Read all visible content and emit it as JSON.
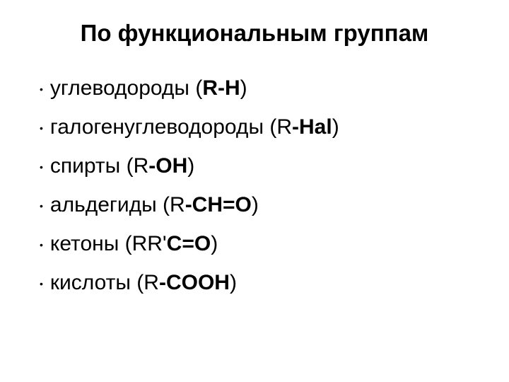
{
  "title": "По функциональным группам",
  "items": [
    {
      "name": "углеводороды",
      "paren_open": " (",
      "bold_part": "R-H",
      "after": "",
      "paren_close": ")"
    },
    {
      "name": "галогенуглеводороды",
      "paren_open": " (R",
      "bold_part": "-Hal",
      "after": "",
      "paren_close": ")"
    },
    {
      "name": "спирты",
      "paren_open": " (R",
      "bold_part": "-OH",
      "after": "",
      "paren_close": ")"
    },
    {
      "name": "альдегиды",
      "paren_open": " (R",
      "bold_part": "-CH=O",
      "after": "",
      "paren_close": ")"
    },
    {
      "name": "кетоны",
      "paren_open": " (RR'",
      "bold_part": "C=O",
      "after": "",
      "paren_close": ")"
    },
    {
      "name": "кислоты",
      "paren_open": " (R",
      "bold_part": "-COOH",
      "after": "",
      "paren_close": ")"
    }
  ],
  "colors": {
    "background": "#ffffff",
    "text": "#000000"
  },
  "typography": {
    "title_fontsize": 33,
    "title_weight": "bold",
    "item_fontsize": 30,
    "font_family": "Arial"
  }
}
